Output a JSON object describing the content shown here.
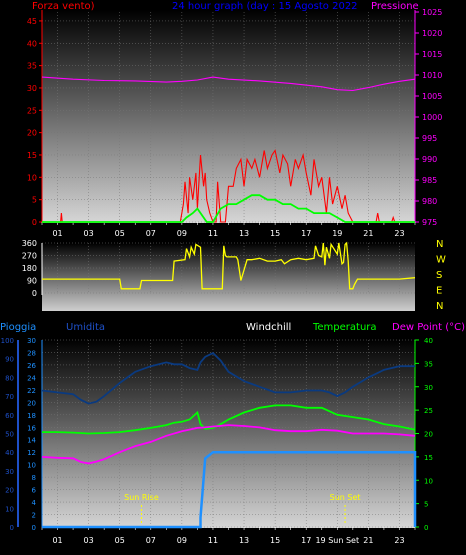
{
  "chart_data": [
    {
      "type": "line",
      "title": "24 hour graph (day : 15 Agosto 2022",
      "left_label": "Forza vento)",
      "right_label": "Pressione",
      "x_ticks": [
        "01",
        "03",
        "05",
        "07",
        "09",
        "11",
        "13",
        "15",
        "17",
        "19",
        "21",
        "23"
      ],
      "y_left_ticks": [
        0,
        5,
        10,
        15,
        20,
        25,
        30,
        35,
        40,
        45
      ],
      "y_right_ticks": [
        975,
        980,
        985,
        990,
        995,
        1000,
        1005,
        1010,
        1015,
        1020,
        1025
      ],
      "y_left_range": [
        0,
        47
      ],
      "y_right_range": [
        975,
        1025
      ],
      "colors": {
        "wind_gust": "#ff0000",
        "wind_avg": "#00ff00",
        "pressure": "#ff00ff",
        "left_axis": "#ff0000",
        "right_axis": "#ff00ff",
        "title": "#0000ff"
      },
      "series": [
        {
          "key": "pressure",
          "axis": "right",
          "x": [
            0,
            2,
            4,
            6,
            8,
            9,
            10,
            11,
            12,
            14,
            16,
            18,
            19,
            20,
            21,
            22,
            23,
            24
          ],
          "values": [
            1009.5,
            1009,
            1008.7,
            1008.6,
            1008.3,
            1008.5,
            1008.8,
            1009.5,
            1009,
            1008.6,
            1008,
            1007.2,
            1006.5,
            1006.3,
            1007,
            1007.8,
            1008.5,
            1009
          ]
        },
        {
          "key": "wind_gust",
          "axis": "left",
          "x": [
            0,
            1.2,
            1.25,
            1.3,
            8.9,
            9.1,
            9.2,
            9.4,
            9.5,
            9.7,
            9.9,
            10,
            10.2,
            10.4,
            10.5,
            10.6,
            10.8,
            11,
            11.2,
            11.3,
            11.5,
            11.8,
            12,
            12.3,
            12.5,
            12.8,
            13,
            13.2,
            13.5,
            13.7,
            14,
            14.3,
            14.5,
            14.8,
            15,
            15.3,
            15.5,
            15.8,
            16,
            16.3,
            16.5,
            16.8,
            17,
            17.3,
            17.5,
            17.8,
            18,
            18.3,
            18.5,
            18.7,
            19,
            19.3,
            19.5,
            19.7,
            20,
            20.3,
            20.5,
            21,
            21.5,
            21.6,
            21.7,
            22.5,
            22.6,
            22.7,
            23,
            24
          ],
          "values": [
            0,
            0,
            2,
            0,
            0,
            4,
            9,
            2,
            10,
            5,
            11,
            3,
            15,
            8,
            11,
            5,
            2,
            0,
            0,
            9,
            0,
            0,
            8,
            8,
            12,
            14,
            8,
            14,
            12,
            14,
            10,
            16,
            12,
            15,
            16,
            11,
            15,
            13,
            8,
            14,
            12,
            15,
            11,
            6,
            14,
            8,
            10,
            2,
            10,
            4,
            8,
            3,
            6,
            2,
            0,
            0,
            0,
            0,
            0,
            2,
            0,
            0,
            1,
            0,
            0,
            0
          ]
        },
        {
          "key": "wind_avg",
          "axis": "left",
          "x": [
            0,
            9,
            9.3,
            9.7,
            10,
            10.4,
            10.6,
            11,
            11.5,
            12,
            12.5,
            13,
            13.5,
            14,
            14.5,
            15,
            15.5,
            16,
            16.5,
            17,
            17.5,
            18,
            18.5,
            19,
            19.5,
            20,
            21,
            24
          ],
          "values": [
            0,
            0,
            1,
            2,
            3,
            1,
            0,
            0,
            3,
            4,
            4,
            5,
            6,
            6,
            5,
            5,
            4,
            4,
            3,
            3,
            2,
            2,
            2,
            1,
            0,
            0,
            0,
            0
          ]
        }
      ]
    },
    {
      "type": "line",
      "y_left_ticks": [
        0,
        90,
        180,
        270,
        360
      ],
      "y_left_range": [
        0,
        360
      ],
      "compass_labels": [
        "N",
        "W",
        "S",
        "E",
        "N"
      ],
      "colors": {
        "wind_dir": "#ffff00",
        "compass": "#ffff00",
        "axis": "#ffffff"
      },
      "series": [
        {
          "key": "wind_dir",
          "x": [
            0,
            0.5,
            5,
            5.1,
            6.3,
            6.4,
            8.4,
            8.5,
            9.2,
            9.3,
            9.5,
            9.6,
            9.8,
            9.9,
            10.2,
            10.3,
            10.6,
            11,
            11.6,
            11.7,
            11.8,
            11.9,
            12.5,
            12.6,
            12.8,
            13.2,
            13.5,
            14,
            14.5,
            15,
            15.4,
            15.6,
            16,
            16.5,
            17,
            17.5,
            17.6,
            17.8,
            18,
            18.1,
            18.2,
            18.3,
            18.5,
            18.6,
            19,
            19.1,
            19.3,
            19.4,
            19.5,
            19.6,
            19.7,
            19.8,
            20,
            20.1,
            20.2,
            20.3,
            20.6,
            21,
            22,
            23,
            24
          ],
          "values": [
            100,
            100,
            100,
            30,
            30,
            90,
            90,
            230,
            240,
            320,
            260,
            330,
            280,
            350,
            330,
            30,
            30,
            30,
            30,
            340,
            270,
            260,
            260,
            240,
            90,
            240,
            240,
            250,
            230,
            230,
            240,
            210,
            240,
            250,
            240,
            250,
            340,
            270,
            260,
            360,
            200,
            330,
            250,
            350,
            280,
            360,
            210,
            220,
            350,
            360,
            230,
            30,
            30,
            60,
            80,
            100,
            100,
            100,
            100,
            100,
            110
          ]
        }
      ]
    },
    {
      "type": "line",
      "legend": [
        "Pioggia",
        "Umidita",
        "Windchill",
        "Temperatura",
        "Dew Point (°C)"
      ],
      "x_ticks": [
        "01",
        "03",
        "05",
        "07",
        "09",
        "11",
        "13",
        "15",
        "17",
        "19",
        "21",
        "23"
      ],
      "x_tick_labels_override": {
        "19": "19 Sun Set"
      },
      "y_rain_ticks": [
        0,
        2,
        4,
        6,
        8,
        10,
        12,
        14,
        16,
        18,
        20,
        22,
        24,
        26,
        28,
        30
      ],
      "y_hum_ticks": [
        0,
        10,
        20,
        30,
        40,
        50,
        60,
        70,
        80,
        90,
        100
      ],
      "y_temp_ticks": [
        0,
        5,
        10,
        15,
        20,
        25,
        30,
        35,
        40
      ],
      "annotations": [
        {
          "label": "Sun Rise",
          "x": 6.4
        },
        {
          "label": "Sun Set",
          "x": 19.5
        }
      ],
      "colors": {
        "rain": "#1e90ff",
        "humidity": "#0a3a80",
        "temperature": "#00ff00",
        "dewpoint": "#ff00ff",
        "windchill": "#ffffff",
        "rain_axis": "#1e90ff",
        "hum_axis": "#1e50c8",
        "temp_axis": "#00ff00"
      },
      "series": [
        {
          "key": "humidity",
          "axis": "humidity",
          "x": [
            0,
            1,
            2,
            2.5,
            3,
            3.5,
            4,
            5,
            6,
            7,
            8,
            8.5,
            9,
            9.5,
            10,
            10.2,
            10.5,
            11,
            11.5,
            12,
            13,
            14,
            15,
            16,
            17,
            18,
            18.5,
            19,
            19.5,
            20,
            21,
            22,
            23,
            23.5,
            24
          ],
          "values": [
            73,
            72,
            71,
            68,
            66,
            67,
            70,
            77,
            83,
            86,
            88,
            87,
            87,
            85,
            84,
            88,
            91,
            93,
            89,
            83,
            78,
            75,
            72,
            72,
            73,
            73,
            72,
            70,
            72,
            75,
            80,
            84,
            86,
            86,
            86
          ]
        },
        {
          "key": "temperature",
          "axis": "temperature",
          "x": [
            0,
            1,
            2,
            3,
            4,
            5,
            6,
            7,
            8,
            8.5,
            9,
            9.5,
            10,
            10.2,
            10.5,
            11,
            11.5,
            12,
            13,
            14,
            15,
            16,
            17,
            18,
            19,
            20,
            21,
            22,
            23,
            24
          ],
          "values": [
            20.3,
            20.3,
            20.2,
            20,
            20.1,
            20.3,
            20.7,
            21.2,
            21.8,
            22.3,
            22.5,
            23,
            24.5,
            22,
            21,
            21.2,
            22,
            23,
            24.5,
            25.5,
            26,
            26,
            25.5,
            25.5,
            24,
            23.5,
            23,
            22,
            21.5,
            20.8
          ]
        },
        {
          "key": "dewpoint",
          "axis": "temperature",
          "x": [
            0,
            1,
            2,
            2.5,
            3,
            3.5,
            4,
            5,
            6,
            7,
            8,
            9,
            10,
            10.5,
            11,
            12,
            13,
            14,
            15,
            16,
            17,
            18,
            19,
            20,
            21,
            22,
            23,
            24
          ],
          "values": [
            15,
            14.8,
            14.7,
            13.9,
            13.6,
            14,
            14.5,
            16,
            17.3,
            18.2,
            19.5,
            20.5,
            21.2,
            21.3,
            21.5,
            21.8,
            21.6,
            21.3,
            20.7,
            20.5,
            20.5,
            20.8,
            20.6,
            20,
            20,
            20,
            19.8,
            19.5
          ]
        },
        {
          "key": "rain",
          "axis": "rain",
          "x": [
            0,
            10.2,
            10.2,
            10.5,
            11,
            24,
            24
          ],
          "values": [
            0,
            0,
            1.5,
            11,
            12,
            12,
            0
          ]
        }
      ],
      "ranges": {
        "rain": [
          0,
          30
        ],
        "humidity": [
          0,
          100
        ],
        "temperature": [
          0,
          40
        ]
      }
    }
  ]
}
